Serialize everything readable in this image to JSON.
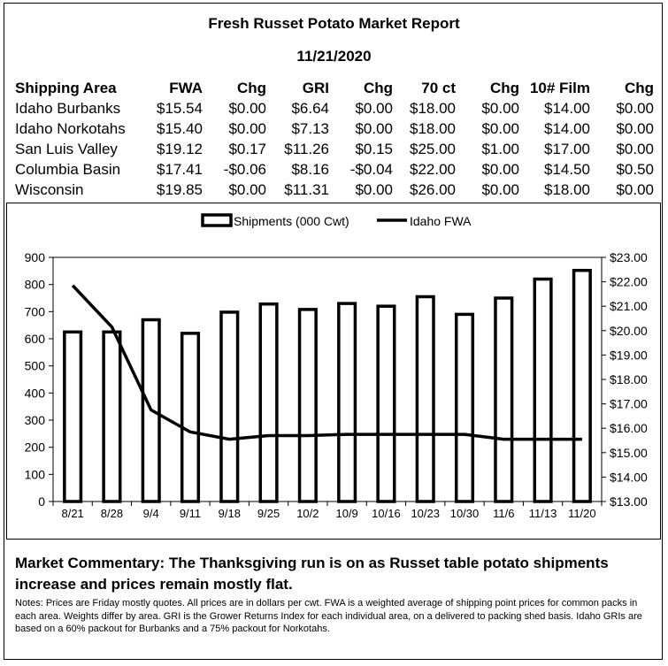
{
  "report": {
    "title": "Fresh Russet Potato Market Report",
    "date": "11/21/2020"
  },
  "table": {
    "headers": [
      "Shipping Area",
      "FWA",
      "Chg",
      "GRI",
      "Chg",
      "70 ct",
      "Chg",
      "10# Film",
      "Chg"
    ],
    "rows": [
      [
        "Idaho Burbanks",
        "$15.54",
        "$0.00",
        "$6.64",
        "$0.00",
        "$18.00",
        "$0.00",
        "$14.00",
        "$0.00"
      ],
      [
        "Idaho Norkotahs",
        "$15.40",
        "$0.00",
        "$7.13",
        "$0.00",
        "$18.00",
        "$0.00",
        "$14.00",
        "$0.00"
      ],
      [
        "San Luis Valley",
        "$19.12",
        "$0.17",
        "$11.26",
        "$0.15",
        "$25.00",
        "$1.00",
        "$17.00",
        "$0.00"
      ],
      [
        "Columbia Basin",
        "$17.41",
        "-$0.06",
        "$8.16",
        "-$0.04",
        "$22.00",
        "$0.00",
        "$14.50",
        "$0.50"
      ],
      [
        "Wisconsin",
        "$19.85",
        "$0.00",
        "$11.31",
        "$0.00",
        "$26.00",
        "$0.00",
        "$18.00",
        "$0.00"
      ]
    ]
  },
  "chart_data": {
    "type": "bar",
    "categories": [
      "8/21",
      "8/28",
      "9/4",
      "9/11",
      "9/18",
      "9/25",
      "10/2",
      "10/9",
      "10/16",
      "10/23",
      "10/30",
      "11/6",
      "11/13",
      "11/20"
    ],
    "series": [
      {
        "name": "Shipments (000 Cwt)",
        "type": "bar",
        "axis": "left",
        "values": [
          625,
          625,
          670,
          620,
          698,
          728,
          708,
          730,
          720,
          755,
          690,
          750,
          820,
          852
        ]
      },
      {
        "name": "Idaho FWA",
        "type": "line",
        "axis": "right",
        "values": [
          21.85,
          20.15,
          16.75,
          15.85,
          15.55,
          15.7,
          15.7,
          15.75,
          15.75,
          15.75,
          15.75,
          15.55,
          15.55,
          15.55
        ]
      }
    ],
    "y_left": {
      "min": 0,
      "max": 900,
      "ticks": [
        "0",
        "100",
        "200",
        "300",
        "400",
        "500",
        "600",
        "700",
        "800",
        "900"
      ]
    },
    "y_right": {
      "min": 13,
      "max": 23,
      "ticks": [
        "$13.00",
        "$14.00",
        "$15.00",
        "$16.00",
        "$17.00",
        "$18.00",
        "$19.00",
        "$20.00",
        "$21.00",
        "$22.00",
        "$23.00"
      ]
    },
    "legend_position": "top-center",
    "colors": {
      "bar_fill": "#ffffff",
      "bar_stroke": "#000000",
      "line": "#000000"
    },
    "grid": false
  },
  "commentary": "Market Commentary: The Thanksgiving run is on as Russet table potato shipments increase and prices remain mostly flat.",
  "notes": "Notes: Prices are Friday mostly quotes. All prices are in dollars per cwt. FWA is a weighted average of shipping point prices for  common packs in each area. Weights differ by area. GRI is the Grower Returns Index for each individual area, on a delivered to packing shed basis. Idaho GRIs are based on a 60% packout for Burbanks and a 75% packout for Norkotahs."
}
